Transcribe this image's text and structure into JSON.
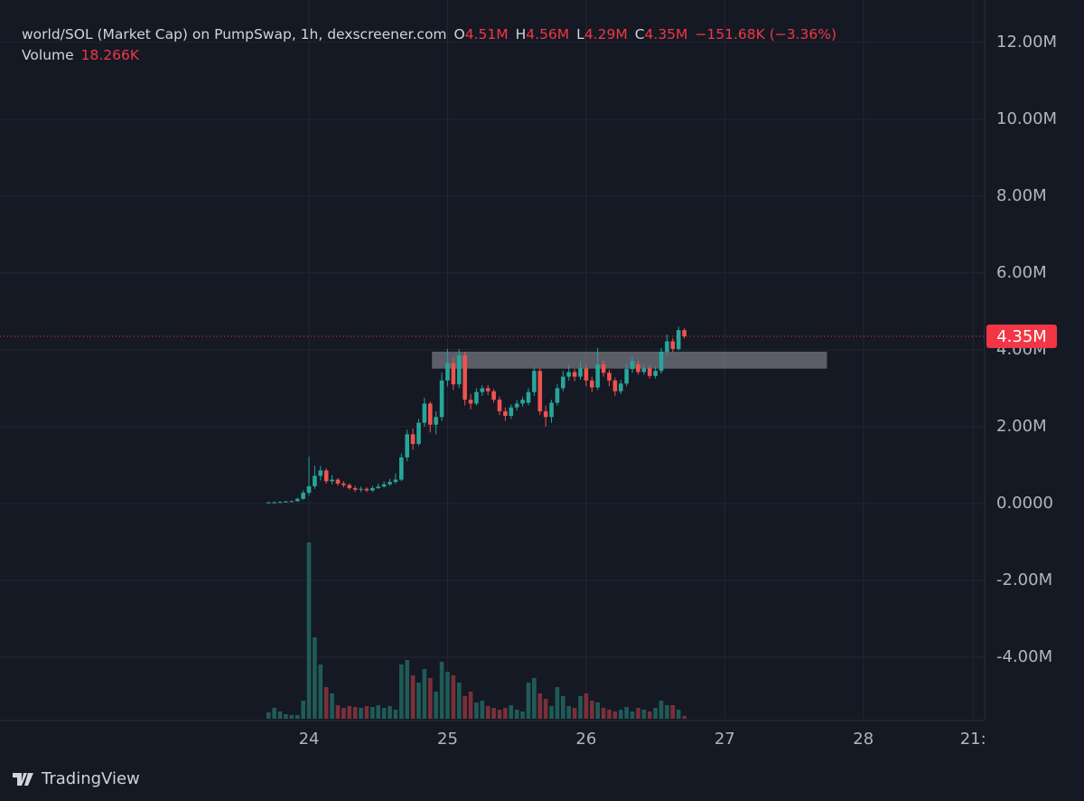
{
  "chart_data": {
    "type": "candlestick",
    "title": "world/SOL (Market Cap) on PumpSwap, 1h, dexscreener.com",
    "ohlc_legend": [
      {
        "key": "O",
        "value": "4.51M"
      },
      {
        "key": "H",
        "value": "4.56M"
      },
      {
        "key": "L",
        "value": "4.29M"
      },
      {
        "key": "C",
        "value": "4.35M"
      }
    ],
    "change": "−151.68K (−3.36%)",
    "volume_label": "Volume",
    "volume_value": "18.266K",
    "price_tag": "4.35M",
    "watermark": "TradingView",
    "up_color": "#26a69a",
    "down_color": "#ef5350",
    "up_volume_color": "#1f5b57",
    "down_volume_color": "#7b3039",
    "grid": true,
    "ylim": [
      -5.6,
      13.1
    ],
    "yticks": [
      {
        "value": -4,
        "label": "-4.00M"
      },
      {
        "value": -2,
        "label": "-2.00M"
      },
      {
        "value": 0,
        "label": "0.0000"
      },
      {
        "value": 2,
        "label": "2.00M"
      },
      {
        "value": 4,
        "label": "4.00M"
      },
      {
        "value": 6,
        "label": "6.00M"
      },
      {
        "value": 8,
        "label": "8.00M"
      },
      {
        "value": 10,
        "label": "10.00M"
      },
      {
        "value": 12,
        "label": "12.00M"
      }
    ],
    "xlim": [
      -53.5,
      117
    ],
    "xticks": [
      {
        "value": 0,
        "label": "24"
      },
      {
        "value": 24,
        "label": "25"
      },
      {
        "value": 48,
        "label": "26"
      },
      {
        "value": 72,
        "label": "27"
      },
      {
        "value": 96,
        "label": "28"
      },
      {
        "value": 115,
        "label": "21:"
      }
    ],
    "zone": {
      "x": [
        21.3,
        89.7
      ],
      "y": [
        3.51,
        3.95
      ]
    },
    "x": [
      -7,
      -6,
      -5,
      -4,
      -3,
      -2,
      -1,
      0,
      1,
      2,
      3,
      4,
      5,
      6,
      7,
      8,
      9,
      10,
      11,
      12,
      13,
      14,
      15,
      16,
      17,
      18,
      19,
      20,
      21,
      22,
      23,
      24,
      25,
      26,
      27,
      28,
      29,
      30,
      31,
      32,
      33,
      34,
      35,
      36,
      37,
      38,
      39,
      40,
      41,
      42,
      43,
      44,
      45,
      46,
      47,
      48,
      49,
      50,
      51,
      52,
      53,
      54,
      55,
      56,
      57,
      58,
      59,
      60,
      61,
      62,
      63,
      64,
      65
    ],
    "open": [
      0.02,
      0.03,
      0.03,
      0.04,
      0.05,
      0.06,
      0.12,
      0.28,
      0.45,
      0.72,
      0.86,
      0.58,
      0.62,
      0.52,
      0.48,
      0.4,
      0.36,
      0.38,
      0.34,
      0.4,
      0.44,
      0.5,
      0.56,
      0.62,
      1.2,
      1.8,
      1.55,
      2.1,
      2.6,
      2.05,
      2.25,
      3.2,
      3.65,
      3.1,
      3.85,
      2.7,
      2.6,
      2.9,
      3.0,
      2.92,
      2.7,
      2.4,
      2.28,
      2.5,
      2.6,
      2.62,
      2.9,
      3.45,
      2.4,
      2.25,
      2.62,
      3.0,
      3.3,
      3.42,
      3.3,
      3.52,
      3.2,
      3.02,
      3.62,
      3.4,
      3.2,
      2.92,
      3.12,
      3.5,
      3.62,
      3.42,
      3.52,
      3.32,
      3.45,
      3.95,
      4.22,
      4.02,
      4.51
    ],
    "high": [
      0.04,
      0.05,
      0.06,
      0.07,
      0.08,
      0.15,
      0.34,
      1.22,
      0.98,
      0.98,
      0.92,
      0.74,
      0.66,
      0.58,
      0.52,
      0.46,
      0.44,
      0.42,
      0.46,
      0.52,
      0.58,
      0.64,
      0.78,
      1.3,
      1.92,
      1.95,
      2.2,
      2.75,
      2.65,
      2.4,
      3.4,
      4.02,
      3.8,
      4.02,
      3.95,
      2.85,
      3.0,
      3.08,
      3.08,
      2.98,
      2.78,
      2.5,
      2.58,
      2.7,
      2.78,
      3.0,
      3.55,
      3.52,
      2.55,
      2.7,
      3.1,
      3.45,
      3.6,
      3.5,
      3.7,
      3.6,
      3.3,
      4.05,
      3.72,
      3.48,
      3.28,
      3.22,
      3.62,
      3.82,
      3.72,
      3.62,
      3.6,
      3.55,
      4.05,
      4.4,
      4.3,
      4.6,
      4.56
    ],
    "low": [
      0.01,
      0.02,
      0.02,
      0.03,
      0.04,
      0.05,
      0.1,
      0.2,
      0.38,
      0.6,
      0.52,
      0.5,
      0.46,
      0.42,
      0.36,
      0.3,
      0.3,
      0.3,
      0.3,
      0.38,
      0.42,
      0.46,
      0.52,
      0.58,
      1.1,
      1.4,
      1.5,
      2.0,
      1.85,
      1.8,
      2.15,
      3.05,
      2.95,
      3.0,
      2.55,
      2.45,
      2.55,
      2.8,
      2.82,
      2.62,
      2.3,
      2.15,
      2.2,
      2.42,
      2.52,
      2.55,
      2.8,
      2.3,
      2.0,
      2.1,
      2.55,
      2.92,
      3.2,
      3.18,
      3.22,
      3.05,
      2.9,
      2.95,
      3.3,
      3.05,
      2.8,
      2.85,
      3.05,
      3.4,
      3.35,
      3.35,
      3.25,
      3.25,
      3.38,
      3.85,
      3.95,
      3.98,
      4.29
    ],
    "close": [
      0.03,
      0.03,
      0.04,
      0.05,
      0.06,
      0.12,
      0.28,
      0.45,
      0.72,
      0.86,
      0.58,
      0.62,
      0.52,
      0.48,
      0.4,
      0.36,
      0.38,
      0.34,
      0.4,
      0.44,
      0.5,
      0.56,
      0.62,
      1.2,
      1.8,
      1.55,
      2.1,
      2.6,
      2.05,
      2.25,
      3.2,
      3.65,
      3.1,
      3.85,
      2.7,
      2.6,
      2.9,
      3.0,
      2.92,
      2.7,
      2.4,
      2.28,
      2.5,
      2.6,
      2.7,
      2.9,
      3.45,
      2.4,
      2.25,
      2.62,
      3.0,
      3.3,
      3.42,
      3.3,
      3.52,
      3.2,
      3.02,
      3.62,
      3.4,
      3.2,
      2.92,
      3.12,
      3.5,
      3.7,
      3.42,
      3.52,
      3.32,
      3.45,
      3.95,
      4.22,
      4.02,
      4.51,
      4.35
    ],
    "volume": [
      42000,
      72000,
      48000,
      30000,
      24000,
      24000,
      120000,
      1170000,
      540000,
      360000,
      210000,
      168000,
      90000,
      72000,
      84000,
      78000,
      72000,
      84000,
      78000,
      90000,
      72000,
      84000,
      60000,
      360000,
      390000,
      288000,
      240000,
      330000,
      270000,
      180000,
      378000,
      312000,
      288000,
      240000,
      150000,
      180000,
      108000,
      120000,
      84000,
      72000,
      60000,
      72000,
      90000,
      60000,
      48000,
      240000,
      270000,
      168000,
      132000,
      84000,
      210000,
      150000,
      84000,
      72000,
      150000,
      168000,
      120000,
      108000,
      72000,
      60000,
      48000,
      60000,
      78000,
      48000,
      72000,
      60000,
      48000,
      72000,
      120000,
      90000,
      90000,
      60000,
      18266
    ]
  }
}
